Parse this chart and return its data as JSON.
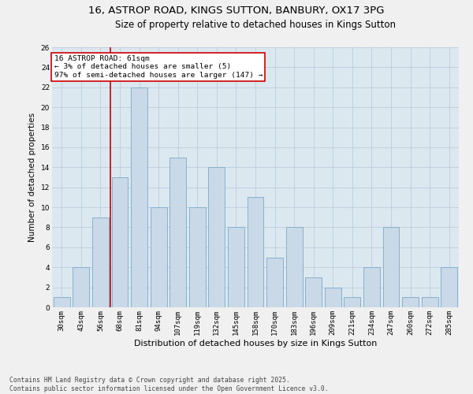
{
  "title1": "16, ASTROP ROAD, KINGS SUTTON, BANBURY, OX17 3PG",
  "title2": "Size of property relative to detached houses in Kings Sutton",
  "xlabel": "Distribution of detached houses by size in Kings Sutton",
  "ylabel": "Number of detached properties",
  "categories": [
    "30sqm",
    "43sqm",
    "56sqm",
    "68sqm",
    "81sqm",
    "94sqm",
    "107sqm",
    "119sqm",
    "132sqm",
    "145sqm",
    "158sqm",
    "170sqm",
    "183sqm",
    "196sqm",
    "209sqm",
    "221sqm",
    "234sqm",
    "247sqm",
    "260sqm",
    "272sqm",
    "285sqm"
  ],
  "values": [
    1,
    4,
    9,
    13,
    22,
    10,
    15,
    10,
    14,
    8,
    11,
    5,
    8,
    3,
    2,
    1,
    4,
    8,
    1,
    1,
    4
  ],
  "bar_color": "#c9d9e8",
  "bar_edge_color": "#7aaac8",
  "bar_edge_width": 0.6,
  "red_line_index": 2,
  "red_line_color": "#cc0000",
  "annotation_text": "16 ASTROP ROAD: 61sqm\n← 3% of detached houses are smaller (5)\n97% of semi-detached houses are larger (147) →",
  "annotation_box_color": "#ffffff",
  "annotation_box_edge": "#cc0000",
  "ylim": [
    0,
    26
  ],
  "yticks": [
    0,
    2,
    4,
    6,
    8,
    10,
    12,
    14,
    16,
    18,
    20,
    22,
    24,
    26
  ],
  "grid_color": "#b8c8d8",
  "bg_color": "#dce8f0",
  "fig_bg_color": "#f0f0f0",
  "footer": "Contains HM Land Registry data © Crown copyright and database right 2025.\nContains public sector information licensed under the Open Government Licence v3.0.",
  "title1_fontsize": 9.5,
  "title2_fontsize": 8.5,
  "xlabel_fontsize": 8,
  "ylabel_fontsize": 7.5,
  "tick_fontsize": 6.5,
  "annot_fontsize": 6.8,
  "footer_fontsize": 5.8
}
